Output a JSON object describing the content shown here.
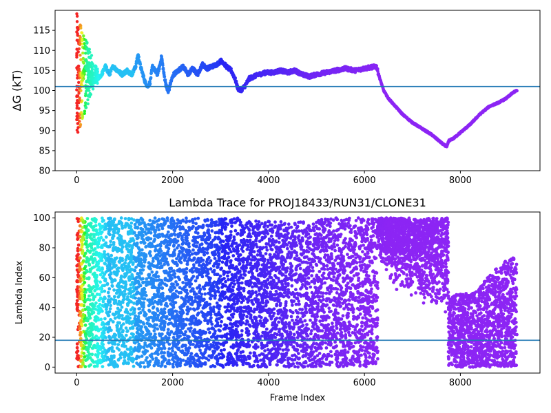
{
  "chart_data": [
    {
      "type": "scatter",
      "title": "",
      "xlabel": "",
      "ylabel": "ΔG (kT)",
      "xlim": [
        -450,
        9660
      ],
      "ylim": [
        80,
        120
      ],
      "xticks": [
        0,
        2000,
        4000,
        6000,
        8000
      ],
      "yticks": [
        80,
        85,
        90,
        95,
        100,
        105,
        110,
        115
      ],
      "hline": 101,
      "hline_color": "#1f77b4",
      "colormap": "rainbow",
      "grid": false,
      "legend": "none",
      "trace_points": [
        [
          0,
          110
        ],
        [
          60,
          104
        ],
        [
          120,
          104
        ],
        [
          200,
          106
        ],
        [
          280,
          104
        ],
        [
          360,
          102
        ],
        [
          440,
          103
        ],
        [
          520,
          104
        ],
        [
          600,
          106
        ],
        [
          680,
          104
        ],
        [
          760,
          106
        ],
        [
          850,
          105
        ],
        [
          950,
          104
        ],
        [
          1050,
          105
        ],
        [
          1150,
          104
        ],
        [
          1230,
          106
        ],
        [
          1280,
          109
        ],
        [
          1330,
          106
        ],
        [
          1380,
          104
        ],
        [
          1430,
          102
        ],
        [
          1480,
          101
        ],
        [
          1530,
          102
        ],
        [
          1580,
          106
        ],
        [
          1630,
          105
        ],
        [
          1680,
          104
        ],
        [
          1730,
          106
        ],
        [
          1770,
          108.5
        ],
        [
          1820,
          104
        ],
        [
          1870,
          101
        ],
        [
          1910,
          99.5
        ],
        [
          1960,
          102
        ],
        [
          2020,
          104
        ],
        [
          2120,
          105
        ],
        [
          2220,
          106
        ],
        [
          2320,
          104
        ],
        [
          2420,
          105.5
        ],
        [
          2520,
          104
        ],
        [
          2620,
          106.5
        ],
        [
          2720,
          105.5
        ],
        [
          2820,
          106
        ],
        [
          2920,
          106.5
        ],
        [
          3020,
          107.5
        ],
        [
          3120,
          106
        ],
        [
          3220,
          105
        ],
        [
          3300,
          103
        ],
        [
          3360,
          100.5
        ],
        [
          3420,
          100
        ],
        [
          3500,
          101
        ],
        [
          3600,
          103
        ],
        [
          3700,
          103.5
        ],
        [
          3800,
          104
        ],
        [
          3950,
          104.5
        ],
        [
          4100,
          104.5
        ],
        [
          4250,
          105
        ],
        [
          4400,
          104.5
        ],
        [
          4550,
          105
        ],
        [
          4700,
          104
        ],
        [
          4850,
          103.5
        ],
        [
          5000,
          104
        ],
        [
          5200,
          104.5
        ],
        [
          5400,
          105
        ],
        [
          5600,
          105.5
        ],
        [
          5800,
          105
        ],
        [
          6000,
          105.5
        ],
        [
          6150,
          105.8
        ],
        [
          6250,
          106
        ],
        [
          6320,
          103
        ],
        [
          6400,
          100
        ],
        [
          6500,
          98
        ],
        [
          6650,
          96
        ],
        [
          6800,
          94
        ],
        [
          7000,
          92
        ],
        [
          7200,
          90.5
        ],
        [
          7400,
          89
        ],
        [
          7550,
          87.5
        ],
        [
          7650,
          86.5
        ],
        [
          7720,
          86
        ],
        [
          7760,
          87.5
        ],
        [
          7850,
          88
        ],
        [
          8000,
          89.5
        ],
        [
          8200,
          91.5
        ],
        [
          8400,
          94
        ],
        [
          8600,
          96
        ],
        [
          8800,
          97
        ],
        [
          8950,
          98
        ],
        [
          9050,
          99
        ],
        [
          9100,
          99.5
        ],
        [
          9180,
          100
        ]
      ],
      "early_scatter_x_range": [
        0,
        450
      ],
      "early_scatter_y_range": [
        88,
        119
      ]
    },
    {
      "type": "scatter",
      "title": "Lambda Trace for PROJ18433/RUN31/CLONE31",
      "xlabel": "Frame Index",
      "ylabel": "Lambda Index",
      "xlim": [
        -450,
        9660
      ],
      "ylim": [
        -4,
        104
      ],
      "xticks": [
        0,
        2000,
        4000,
        6000,
        8000
      ],
      "yticks": [
        0,
        20,
        40,
        60,
        80,
        100
      ],
      "hline": 18,
      "hline_color": "#1f77b4",
      "colormap": "rainbow",
      "grid": false,
      "legend": "none",
      "segments": [
        {
          "x": [
            0,
            60
          ],
          "y": [
            0,
            100
          ]
        },
        {
          "x": [
            60,
            1250
          ],
          "y": [
            0,
            100
          ]
        },
        {
          "x": [
            1250,
            3400
          ],
          "y": [
            0,
            100
          ]
        },
        {
          "x": [
            3400,
            5000
          ],
          "y": [
            0,
            98
          ]
        },
        {
          "x": [
            5000,
            6280
          ],
          "y": [
            0,
            100
          ]
        },
        {
          "x": [
            6280,
            7750
          ],
          "y": [
            40,
            100
          ],
          "lower_trend": [
            [
              6280,
              90
            ],
            [
              6600,
              70
            ],
            [
              7100,
              60
            ],
            [
              7750,
              48
            ]
          ]
        },
        {
          "x": [
            7750,
            9180
          ],
          "y": [
            0,
            48
          ],
          "upper_trend": [
            [
              7750,
              48
            ],
            [
              8300,
              50
            ],
            [
              8700,
              65
            ],
            [
              9180,
              77
            ]
          ]
        }
      ]
    }
  ]
}
